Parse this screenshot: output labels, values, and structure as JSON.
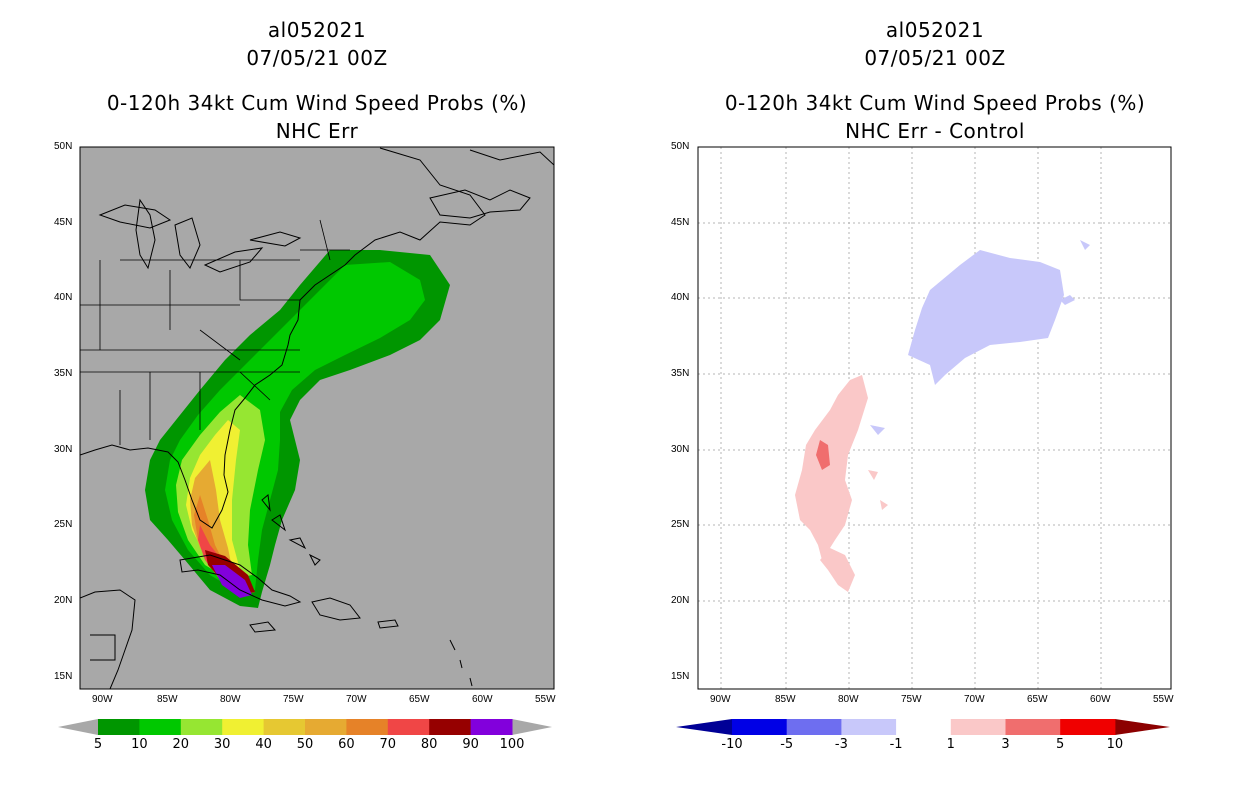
{
  "left_panel": {
    "storm_id": "al052021",
    "datetime": "07/05/21 00Z",
    "title": "0-120h 34kt Cum Wind Speed Probs (%)",
    "subtitle": "NHC Err",
    "background_color": "#a8a8a8",
    "colorbar": {
      "colors": [
        "#009600",
        "#00c800",
        "#96e632",
        "#f0f032",
        "#e6c832",
        "#e6aa32",
        "#e68228",
        "#f04646",
        "#960000",
        "#8200dc"
      ],
      "labels": [
        "5",
        "10",
        "20",
        "30",
        "40",
        "50",
        "60",
        "70",
        "80",
        "90",
        "100"
      ]
    }
  },
  "right_panel": {
    "storm_id": "al052021",
    "datetime": "07/05/21 00Z",
    "title": "0-120h 34kt Cum Wind Speed Probs (%)",
    "subtitle": "NHC Err - Control",
    "background_color": "#ffffff",
    "colorbar": {
      "colors": [
        "#0000e6",
        "#6e6ef0",
        "#c8c8fa",
        "#ffffff",
        "#fac8c8",
        "#f06e6e",
        "#f00000"
      ],
      "left_arrow_color": "#000096",
      "right_arrow_color": "#8c0000",
      "labels": [
        "-10",
        "-5",
        "-3",
        "-1",
        "1",
        "3",
        "5",
        "10"
      ]
    }
  },
  "map": {
    "lat_labels": [
      "50N",
      "45N",
      "40N",
      "35N",
      "30N",
      "25N",
      "20N",
      "15N"
    ],
    "lon_labels": [
      "90W",
      "85W",
      "80W",
      "75W",
      "70W",
      "65W",
      "60W",
      "55W"
    ]
  }
}
